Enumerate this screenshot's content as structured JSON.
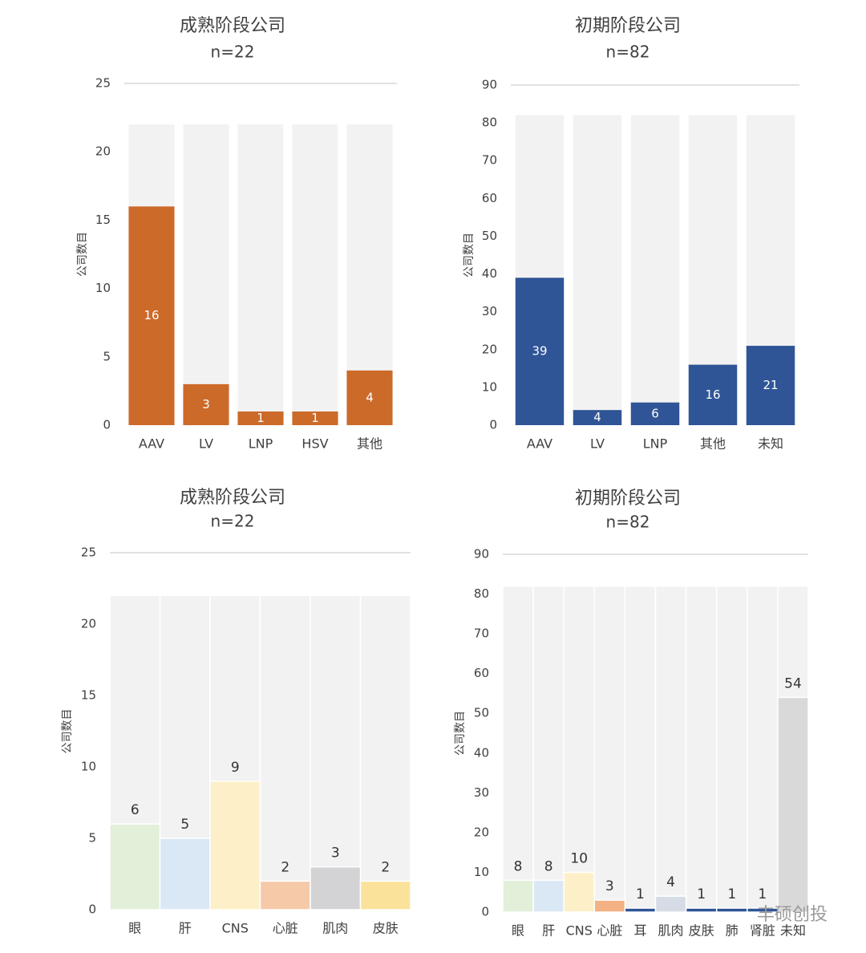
{
  "chart_data": [
    {
      "type": "bar",
      "title": "成熟阶段公司",
      "subtitle": "n=22",
      "y_label": "公司数目",
      "categories": [
        "AAV",
        "LV",
        "LNP",
        "HSV",
        "其他"
      ],
      "series": [
        {
          "color": "#f2f2f2",
          "values": [
            22,
            22,
            22,
            22,
            22
          ]
        },
        {
          "color": "#cc6a2a",
          "values": [
            16,
            3,
            1,
            1,
            4
          ]
        }
      ],
      "label_position": "inside",
      "bar_gap": true,
      "ylim": [
        0,
        25
      ],
      "yticks": [
        0,
        5,
        10,
        15,
        20,
        25
      ],
      "grid": false
    },
    {
      "type": "bar",
      "title": "初期阶段公司",
      "subtitle": "n=82",
      "y_label": "公司数目",
      "categories": [
        "AAV",
        "LV",
        "LNP",
        "其他",
        "未知"
      ],
      "series": [
        {
          "color": "#f2f2f2",
          "values": [
            82,
            82,
            82,
            82,
            82
          ]
        },
        {
          "color": "#2f5597",
          "values": [
            39,
            4,
            6,
            16,
            21
          ]
        }
      ],
      "label_position": "inside",
      "bar_gap": true,
      "ylim": [
        0,
        90
      ],
      "yticks": [
        0,
        10,
        20,
        30,
        40,
        50,
        60,
        70,
        80,
        90
      ],
      "grid": false
    },
    {
      "type": "bar",
      "title": "成熟阶段公司",
      "subtitle": "n=22",
      "y_label": "公司数目",
      "categories": [
        "眼",
        "肝",
        "CNS",
        "心脏",
        "肌肉",
        "皮肤"
      ],
      "series": [
        {
          "color": "#f2f2f2",
          "values": [
            22,
            22,
            22,
            22,
            22,
            22
          ]
        },
        {
          "colors": [
            "#e2efd9",
            "#dae8f5",
            "#fdf0c8",
            "#f6c9a9",
            "#d3d3d5",
            "#fbe29b"
          ],
          "values": [
            6,
            5,
            9,
            2,
            3,
            2
          ]
        }
      ],
      "label_position": "above",
      "bar_gap": false,
      "ylim": [
        0,
        25
      ],
      "yticks": [
        0,
        5,
        10,
        15,
        20,
        25
      ],
      "grid": false
    },
    {
      "type": "bar",
      "title": "初期阶段公司",
      "subtitle": "n=82",
      "y_label": "公司数目",
      "categories": [
        "眼",
        "肝",
        "CNS",
        "心脏",
        "耳",
        "肌肉",
        "皮肤",
        "肺",
        "肾脏",
        "未知"
      ],
      "series": [
        {
          "color": "#f2f2f2",
          "values": [
            82,
            82,
            82,
            82,
            82,
            82,
            82,
            82,
            82,
            82
          ]
        },
        {
          "colors": [
            "#e2efd9",
            "#dae8f5",
            "#fdf0c8",
            "#f4b183",
            "#2f5597",
            "#d6dce5",
            "#2f5597",
            "#2f5597",
            "#2f5597",
            "#d9d9d9"
          ],
          "values": [
            8,
            8,
            10,
            3,
            1,
            4,
            1,
            1,
            1,
            54
          ]
        }
      ],
      "label_position": "above",
      "bar_gap": false,
      "ylim": [
        0,
        90
      ],
      "yticks": [
        0,
        10,
        20,
        30,
        40,
        50,
        60,
        70,
        80,
        90
      ],
      "grid": false
    }
  ],
  "watermark": "丰硕创投"
}
